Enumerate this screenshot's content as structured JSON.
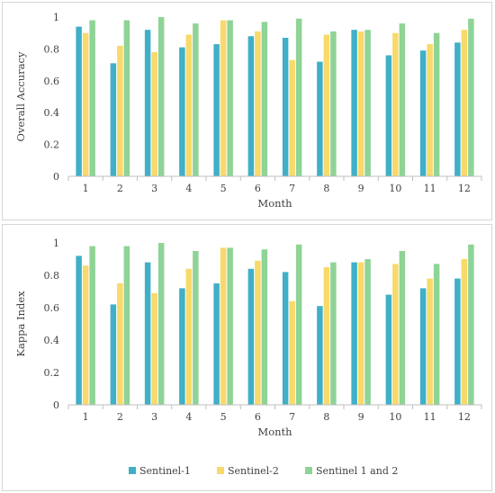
{
  "colors": {
    "s1": "#3fb0c8",
    "s2": "#f8d96a",
    "s12": "#8fd396",
    "axis": "#bfbfbf",
    "grid": "#d9d9d9"
  },
  "chart_data": [
    {
      "type": "bar",
      "categories": [
        "1",
        "2",
        "3",
        "4",
        "5",
        "6",
        "7",
        "8",
        "9",
        "10",
        "11",
        "12"
      ],
      "xlabel": "Month",
      "ylabel": "Overall Accuracy",
      "ylim": [
        0,
        1
      ],
      "yticks": [
        "0",
        "0.2",
        "0.4",
        "0.6",
        "0.8",
        "1"
      ],
      "grid": false,
      "series": [
        {
          "name": "Sentinel-1",
          "values": [
            0.94,
            0.71,
            0.92,
            0.81,
            0.83,
            0.88,
            0.87,
            0.72,
            0.92,
            0.76,
            0.79,
            0.84
          ]
        },
        {
          "name": "Sentinel-2",
          "values": [
            0.9,
            0.82,
            0.78,
            0.89,
            0.98,
            0.91,
            0.73,
            0.89,
            0.91,
            0.9,
            0.83,
            0.92
          ]
        },
        {
          "name": "Sentinel 1 and 2",
          "values": [
            0.98,
            0.98,
            1.0,
            0.96,
            0.98,
            0.97,
            0.99,
            0.91,
            0.92,
            0.96,
            0.9,
            0.99
          ]
        }
      ]
    },
    {
      "type": "bar",
      "categories": [
        "1",
        "2",
        "3",
        "4",
        "5",
        "6",
        "7",
        "8",
        "9",
        "10",
        "11",
        "12"
      ],
      "xlabel": "Month",
      "ylabel": "Kappa Index",
      "ylim": [
        0,
        1
      ],
      "yticks": [
        "0",
        "0.2",
        "0.4",
        "0.6",
        "0.8",
        "1"
      ],
      "grid": false,
      "legend_position": "bottom",
      "series": [
        {
          "name": "Sentinel-1",
          "values": [
            0.92,
            0.62,
            0.88,
            0.72,
            0.75,
            0.84,
            0.82,
            0.61,
            0.88,
            0.68,
            0.72,
            0.78
          ]
        },
        {
          "name": "Sentinel-2",
          "values": [
            0.86,
            0.75,
            0.69,
            0.84,
            0.97,
            0.89,
            0.64,
            0.85,
            0.88,
            0.87,
            0.78,
            0.9
          ]
        },
        {
          "name": "Sentinel 1 and 2",
          "values": [
            0.98,
            0.98,
            1.0,
            0.95,
            0.97,
            0.96,
            0.99,
            0.88,
            0.9,
            0.95,
            0.87,
            0.99
          ]
        }
      ]
    }
  ]
}
